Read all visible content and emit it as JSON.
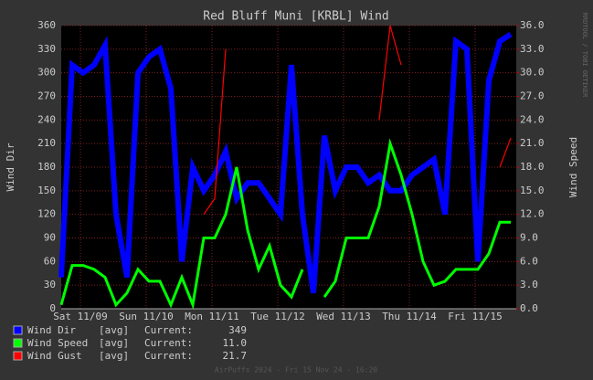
{
  "chart_data": {
    "type": "line",
    "title": "Red Bluff Muni [KRBL] Wind",
    "ylabel": "Wind Dir",
    "y2label": "Wind Speed",
    "side_note": "RRDTOOL / TOBI OETIKER",
    "footer": "AirPuffs 2024 - Fri 15 Nov 24 - 16:20",
    "legend_stat": "[avg]",
    "legend_current": "Current:",
    "grid": true,
    "xlim": [
      0,
      166
    ],
    "xticks": [
      {
        "value": 7,
        "label": "Sat 11/09"
      },
      {
        "value": 31,
        "label": "Sun 11/10"
      },
      {
        "value": 55,
        "label": "Mon 11/11"
      },
      {
        "value": 79,
        "label": "Tue 11/12"
      },
      {
        "value": 103,
        "label": "Wed 11/13"
      },
      {
        "value": 127,
        "label": "Thu 11/14"
      },
      {
        "value": 151,
        "label": "Fri 11/15"
      }
    ],
    "ylim": [
      0,
      360
    ],
    "yticks": [
      0,
      30,
      60,
      90,
      120,
      150,
      180,
      210,
      240,
      270,
      300,
      330,
      360
    ],
    "y2lim": [
      0,
      36
    ],
    "y2ticks": [
      {
        "value": 0,
        "label": "0.0"
      },
      {
        "value": 3,
        "label": "3.0"
      },
      {
        "value": 6,
        "label": "6.0"
      },
      {
        "value": 9,
        "label": "9.0"
      },
      {
        "value": 12,
        "label": "12.0"
      },
      {
        "value": 15,
        "label": "15.0"
      },
      {
        "value": 18,
        "label": "18.0"
      },
      {
        "value": 21,
        "label": "21.0"
      },
      {
        "value": 24,
        "label": "24.0"
      },
      {
        "value": 27,
        "label": "27.0"
      },
      {
        "value": 30,
        "label": "30.0"
      },
      {
        "value": 33,
        "label": "33.0"
      },
      {
        "value": 36,
        "label": "36.0"
      }
    ],
    "x": [
      0,
      4,
      8,
      12,
      16,
      20,
      24,
      28,
      32,
      36,
      40,
      44,
      48,
      52,
      56,
      60,
      64,
      68,
      72,
      76,
      80,
      84,
      88,
      92,
      96,
      100,
      104,
      108,
      112,
      116,
      120,
      124,
      128,
      132,
      136,
      140,
      144,
      148,
      152,
      156,
      160,
      164
    ],
    "series": [
      {
        "name": "Wind Dir",
        "color": "#0000ff",
        "current": 349,
        "values": [
          40,
          310,
          300,
          310,
          335,
          120,
          40,
          300,
          320,
          330,
          280,
          60,
          180,
          150,
          170,
          200,
          140,
          160,
          160,
          140,
          120,
          310,
          120,
          20,
          220,
          150,
          180,
          180,
          160,
          170,
          150,
          150,
          170,
          180,
          190,
          120,
          340,
          330,
          60,
          290,
          340,
          349
        ]
      },
      {
        "name": "Wind Speed",
        "color": "#00ff00",
        "axis": "y2",
        "current": {
          "value": 11,
          "label": "11.0"
        },
        "values": [
          0.5,
          5.5,
          5.5,
          5,
          4,
          0.5,
          2,
          5,
          3.5,
          3.5,
          0.5,
          4,
          0.5,
          9,
          9,
          12,
          18,
          10,
          5,
          8,
          3,
          1.5,
          5,
          null,
          1.5,
          3.5,
          9,
          9,
          9,
          13,
          21,
          17,
          12,
          6,
          3,
          3.5,
          5,
          5,
          5,
          7,
          11,
          11
        ]
      },
      {
        "name": "Wind Gust",
        "color": "#ff0000",
        "axis": "y2",
        "current": 21.7,
        "values": [
          null,
          null,
          null,
          null,
          null,
          null,
          null,
          null,
          null,
          null,
          null,
          null,
          null,
          12,
          14,
          33,
          null,
          null,
          null,
          null,
          null,
          null,
          null,
          null,
          null,
          null,
          null,
          null,
          null,
          24,
          36,
          31,
          null,
          null,
          null,
          null,
          null,
          null,
          null,
          null,
          18,
          21.7
        ]
      }
    ]
  }
}
